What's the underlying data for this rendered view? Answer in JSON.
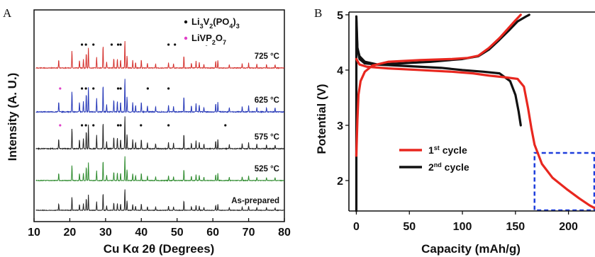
{
  "chart_data": [
    {
      "panel": "A",
      "type": "line",
      "xlabel": "Cu Kα 2θ (Degrees)",
      "ylabel": "Intensity (A. U.)",
      "xlim": [
        10,
        80
      ],
      "xticks": [
        10,
        20,
        30,
        40,
        50,
        60,
        70,
        80
      ],
      "y_ticks_shown": false,
      "grid": false,
      "legend_position": "top-right",
      "legend": [
        {
          "marker": "●",
          "label_base": "Li",
          "parts": [
            {
              "t": "Li"
            },
            {
              "t": "3",
              "sub": true
            },
            {
              "t": "V"
            },
            {
              "t": "2",
              "sub": true
            },
            {
              "t": "(PO"
            },
            {
              "t": "4",
              "sub": true
            },
            {
              "t": ")"
            },
            {
              "t": "3",
              "sub": true
            }
          ],
          "color": "#111111"
        },
        {
          "marker": "●",
          "parts": [
            {
              "t": "LiVP"
            },
            {
              "t": "2",
              "sub": true
            },
            {
              "t": "O"
            },
            {
              "t": "7",
              "sub": true
            }
          ],
          "color": "#e040c8"
        }
      ],
      "series": [
        {
          "label": "725 °C",
          "color": "#d4302c",
          "offset": 4
        },
        {
          "label": "625 °C",
          "color": "#2638b8",
          "offset": 3
        },
        {
          "label": "575 °C",
          "color": "#222222",
          "offset": 2
        },
        {
          "label": "525 °C",
          "color": "#2e8b2e",
          "offset": 1
        },
        {
          "label": "As-prepared",
          "color": "#222222",
          "offset": 0
        }
      ],
      "peaks": [
        {
          "x": 16.9,
          "h": 0.3
        },
        {
          "x": 20.6,
          "h": 0.62
        },
        {
          "x": 22.7,
          "h": 0.28
        },
        {
          "x": 23.8,
          "h": 0.3
        },
        {
          "x": 24.6,
          "h": 0.55
        },
        {
          "x": 25.2,
          "h": 0.7
        },
        {
          "x": 27.5,
          "h": 0.4
        },
        {
          "x": 29.3,
          "h": 0.82
        },
        {
          "x": 30.3,
          "h": 0.22
        },
        {
          "x": 32.3,
          "h": 0.35
        },
        {
          "x": 33.3,
          "h": 0.32
        },
        {
          "x": 34.2,
          "h": 0.3
        },
        {
          "x": 35.4,
          "h": 1.0
        },
        {
          "x": 36.0,
          "h": 0.45
        },
        {
          "x": 37.6,
          "h": 0.28
        },
        {
          "x": 38.4,
          "h": 0.2
        },
        {
          "x": 40.0,
          "h": 0.3
        },
        {
          "x": 41.7,
          "h": 0.18
        },
        {
          "x": 44.0,
          "h": 0.15
        },
        {
          "x": 47.6,
          "h": 0.2
        },
        {
          "x": 49.0,
          "h": 0.16
        },
        {
          "x": 51.9,
          "h": 0.45
        },
        {
          "x": 54.0,
          "h": 0.18
        },
        {
          "x": 55.3,
          "h": 0.24
        },
        {
          "x": 56.2,
          "h": 0.2
        },
        {
          "x": 57.5,
          "h": 0.14
        },
        {
          "x": 60.8,
          "h": 0.24
        },
        {
          "x": 61.4,
          "h": 0.28
        },
        {
          "x": 64.6,
          "h": 0.13
        },
        {
          "x": 68.2,
          "h": 0.16
        },
        {
          "x": 70.0,
          "h": 0.18
        },
        {
          "x": 72.3,
          "h": 0.14
        },
        {
          "x": 75.0,
          "h": 0.12
        },
        {
          "x": 77.4,
          "h": 0.12
        }
      ],
      "markers": [
        {
          "series": "725 °C",
          "type": "Li3V2(PO4)3",
          "x": [
            23.4,
            24.5,
            26.6,
            31.7,
            33.5,
            34.2,
            47.6,
            49.4,
            58.2
          ]
        },
        {
          "series": "625 °C",
          "type": "Li3V2(PO4)3",
          "x": [
            23.4,
            24.5,
            26.6,
            33.5,
            34.2,
            41.8,
            47.6
          ]
        },
        {
          "series": "625 °C",
          "type": "LiVP2O7",
          "x": [
            17.3
          ]
        },
        {
          "series": "575 °C",
          "type": "Li3V2(PO4)3",
          "x": [
            23.4,
            24.5,
            26.6,
            33.5,
            34.2,
            39.9,
            47.6,
            63.5
          ]
        },
        {
          "series": "575 °C",
          "type": "LiVP2O7",
          "x": [
            17.3
          ]
        }
      ]
    },
    {
      "panel": "B",
      "type": "line",
      "xlabel": "Capacity (mAh/g)",
      "ylabel": "Potential (V)",
      "xlim": [
        -7,
        225
      ],
      "ylim": [
        1.45,
        5.05
      ],
      "xticks": [
        0,
        50,
        100,
        150,
        200
      ],
      "yticks": [
        2,
        3,
        4,
        5
      ],
      "grid": false,
      "legend_position": "lower-middle",
      "legend": [
        {
          "label": "1",
          "sup": "st",
          "rest": " cycle",
          "color": "#e8271f"
        },
        {
          "label": "2",
          "sup": "nd",
          "rest": " cycle",
          "color": "#111111"
        }
      ],
      "inset_box": {
        "x": [
          168,
          225
        ],
        "y": [
          1.45,
          2.5
        ],
        "color": "#1f3fdc",
        "style": "dashed"
      },
      "series": [
        {
          "name": "1st cycle",
          "color": "#e8271f",
          "charge": [
            [
              0,
              2.45
            ],
            [
              1,
              3.1
            ],
            [
              2,
              3.55
            ],
            [
              4,
              3.8
            ],
            [
              8,
              3.97
            ],
            [
              15,
              4.08
            ],
            [
              30,
              4.15
            ],
            [
              60,
              4.18
            ],
            [
              90,
              4.2
            ],
            [
              105,
              4.22
            ],
            [
              115,
              4.26
            ],
            [
              125,
              4.4
            ],
            [
              135,
              4.58
            ],
            [
              143,
              4.75
            ],
            [
              150,
              4.9
            ],
            [
              155,
              5.0
            ]
          ],
          "discharge": [
            [
              0,
              4.2
            ],
            [
              3,
              4.1
            ],
            [
              10,
              4.06
            ],
            [
              30,
              4.03
            ],
            [
              60,
              4.0
            ],
            [
              90,
              3.97
            ],
            [
              110,
              3.94
            ],
            [
              125,
              3.9
            ],
            [
              140,
              3.87
            ],
            [
              152,
              3.84
            ],
            [
              158,
              3.7
            ],
            [
              162,
              3.3
            ],
            [
              165,
              2.95
            ],
            [
              168,
              2.65
            ],
            [
              175,
              2.3
            ],
            [
              185,
              2.05
            ],
            [
              198,
              1.85
            ],
            [
              210,
              1.68
            ],
            [
              220,
              1.55
            ],
            [
              225,
              1.5
            ]
          ]
        },
        {
          "name": "2nd cycle",
          "color": "#111111",
          "charge": [
            [
              0,
              1.45
            ],
            [
              0,
              4.9
            ],
            [
              0.5,
              4.6
            ],
            [
              1,
              4.4
            ],
            [
              3,
              4.25
            ],
            [
              8,
              4.15
            ],
            [
              20,
              4.1
            ],
            [
              40,
              4.12
            ],
            [
              70,
              4.15
            ],
            [
              100,
              4.2
            ],
            [
              115,
              4.25
            ],
            [
              125,
              4.37
            ],
            [
              135,
              4.55
            ],
            [
              145,
              4.74
            ],
            [
              152,
              4.88
            ],
            [
              160,
              4.97
            ],
            [
              163,
              5.0
            ]
          ],
          "discharge": [
            [
              0,
              4.97
            ],
            [
              0.5,
              4.7
            ],
            [
              1,
              4.4
            ],
            [
              3,
              4.2
            ],
            [
              8,
              4.12
            ],
            [
              20,
              4.1
            ],
            [
              50,
              4.07
            ],
            [
              80,
              4.04
            ],
            [
              100,
              4.0
            ],
            [
              120,
              3.97
            ],
            [
              135,
              3.94
            ],
            [
              145,
              3.8
            ],
            [
              150,
              3.55
            ],
            [
              153,
              3.25
            ],
            [
              155,
              3.0
            ]
          ]
        }
      ]
    }
  ],
  "labels": {
    "panel_a": "A",
    "panel_b": "B",
    "a_xlabel": "Cu Kα 2θ (Degrees)",
    "a_ylabel": "Intensity (A. U.)",
    "b_xlabel": "Capacity (mAh/g)",
    "b_ylabel": "Potential (V)"
  }
}
